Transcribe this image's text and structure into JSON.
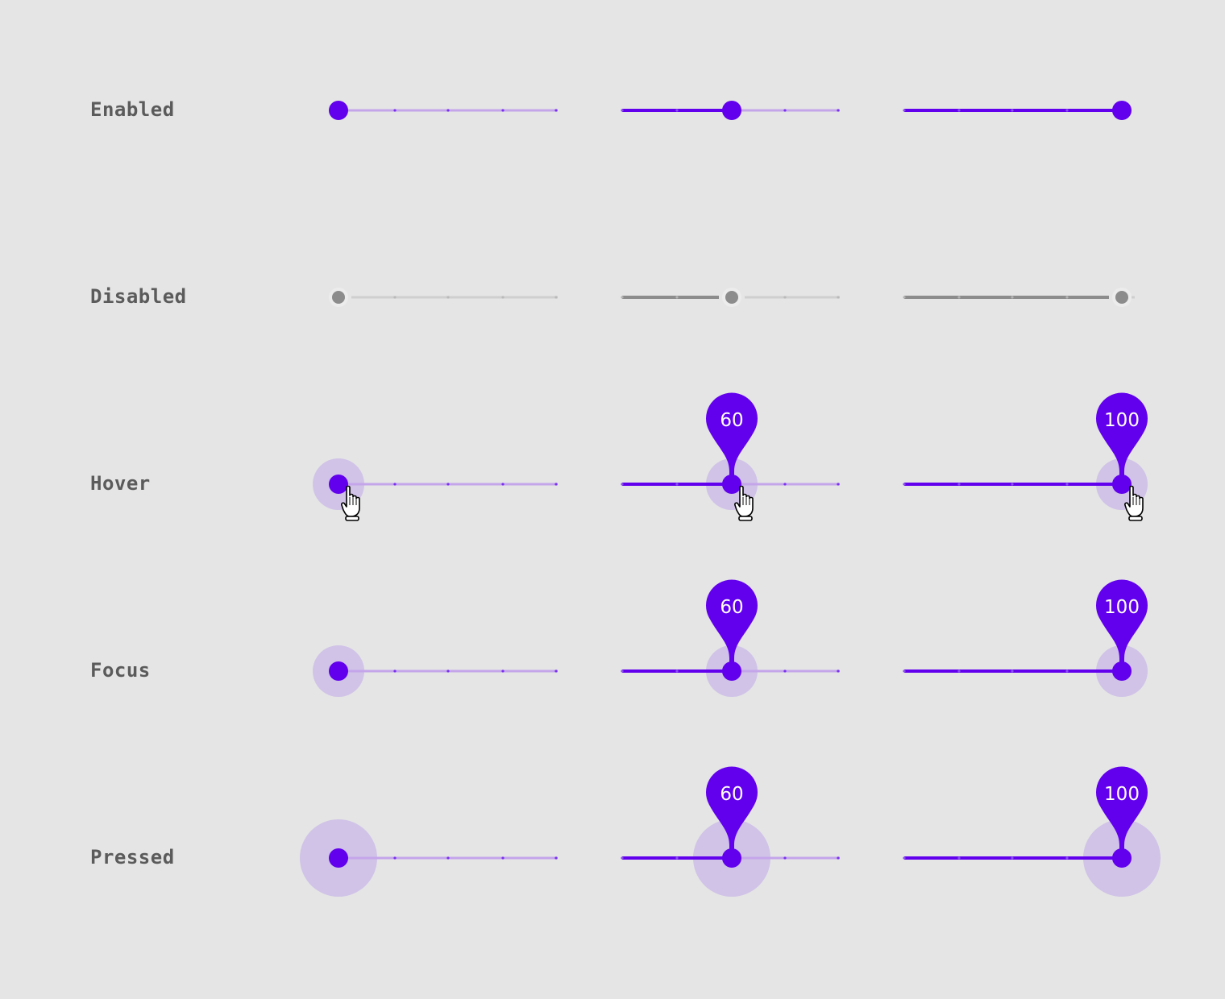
{
  "colors": {
    "background": "#e5e5e5",
    "accent": "#6200ee",
    "accent_inactive_track": "#c4a5ea",
    "halo": "#d0c3e7",
    "disabled_active": "#8c8c8c",
    "disabled_inactive": "#cfcfcf",
    "disabled_thumb": "#8c8c8c",
    "label_text": "#5b5b5b",
    "value_label_text": "#ffffff"
  },
  "rows": [
    {
      "state": "enabled",
      "label": "Enabled",
      "sliders": [
        {
          "value": 0,
          "show_value_label": false,
          "cursor": false
        },
        {
          "value": 60,
          "show_value_label": false,
          "cursor": false
        },
        {
          "value": 100,
          "show_value_label": false,
          "cursor": false
        }
      ]
    },
    {
      "state": "disabled",
      "label": "Disabled",
      "sliders": [
        {
          "value": 0,
          "show_value_label": false,
          "cursor": false
        },
        {
          "value": 60,
          "show_value_label": false,
          "cursor": false
        },
        {
          "value": 100,
          "show_value_label": false,
          "cursor": false
        }
      ]
    },
    {
      "state": "hover",
      "label": "Hover",
      "sliders": [
        {
          "value": 0,
          "show_value_label": false,
          "cursor": true
        },
        {
          "value": 60,
          "show_value_label": true,
          "value_label": "60",
          "cursor": true
        },
        {
          "value": 100,
          "show_value_label": true,
          "value_label": "100",
          "cursor": true
        }
      ]
    },
    {
      "state": "focus",
      "label": "Focus",
      "sliders": [
        {
          "value": 0,
          "show_value_label": false,
          "cursor": false
        },
        {
          "value": 60,
          "show_value_label": true,
          "value_label": "60",
          "cursor": false
        },
        {
          "value": 100,
          "show_value_label": true,
          "value_label": "100",
          "cursor": false
        }
      ]
    },
    {
      "state": "pressed",
      "label": "Pressed",
      "sliders": [
        {
          "value": 0,
          "show_value_label": false,
          "cursor": false
        },
        {
          "value": 60,
          "show_value_label": true,
          "value_label": "60",
          "cursor": false
        },
        {
          "value": 100,
          "show_value_label": true,
          "value_label": "100",
          "cursor": false
        }
      ]
    }
  ],
  "slider_scale": {
    "min": 0,
    "max": 100,
    "step": 20
  }
}
